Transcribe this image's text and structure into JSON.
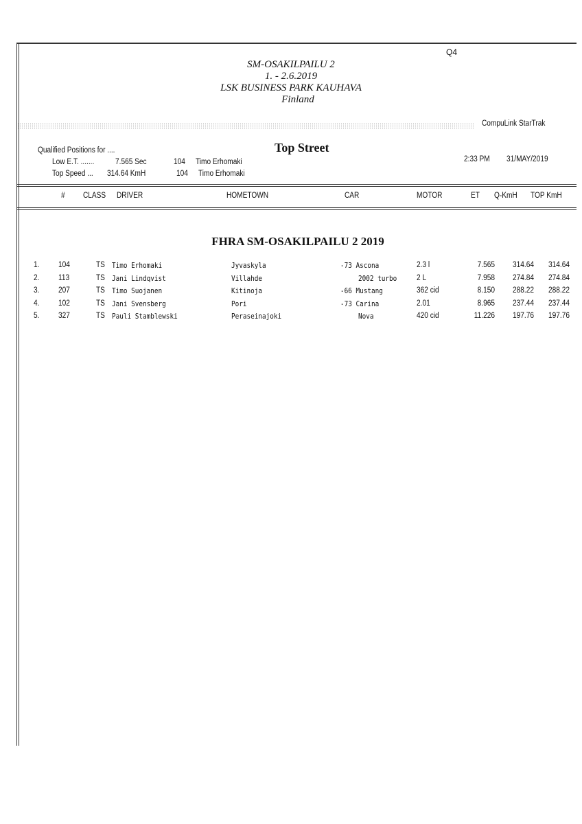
{
  "page_code": "Q4",
  "event": {
    "title": "SM-OSAKILPAILU 2",
    "dates": "1. - 2.6.2019",
    "venue": "LSK BUSINESS PARK KAUHAVA",
    "country": "Finland"
  },
  "system": "CompuLink  StarTrak",
  "qualified": {
    "heading": "Qualified Positions for ....",
    "low_et_label": "Low E.T. .......",
    "low_et_value": "7.565  Sec",
    "low_et_num": "104",
    "low_et_driver": "Timo Erhomaki",
    "top_speed_label": "Top Speed ...",
    "top_speed_value": "314.64  KmH",
    "top_speed_num": "104",
    "top_speed_driver": "Timo Erhomaki"
  },
  "class_title": "Top Street",
  "time": "2:33 PM",
  "date": "31/MAY/2019",
  "columns": [
    "#",
    "CLASS",
    "DRIVER",
    "HOMETOWN",
    "CAR",
    "MOTOR",
    "ET",
    "Q-KmH",
    "TOP KmH"
  ],
  "section_title": "FHRA SM-OSAKILPAILU 2 2019",
  "rows": [
    {
      "pos": "1.",
      "num": "104",
      "class": "TS",
      "driver": "Timo Erhomaki",
      "hometown": "Jyvaskyla",
      "car": "-73 Ascona",
      "motor": "2.3 l",
      "et": "7.565",
      "qkmh": "314.64",
      "topkmh": "314.64"
    },
    {
      "pos": "2.",
      "num": "113",
      "class": "TS",
      "driver": "Jani Lindqvist",
      "hometown": "Villahde",
      "car": "2002 turbo",
      "motor": "2 L",
      "et": "7.958",
      "qkmh": "274.84",
      "topkmh": "274.84"
    },
    {
      "pos": "3.",
      "num": "207",
      "class": "TS",
      "driver": "Timo Suojanen",
      "hometown": "Kitinoja",
      "car": "-66 Mustang",
      "motor": "362 cid",
      "et": "8.150",
      "qkmh": "288.22",
      "topkmh": "288.22"
    },
    {
      "pos": "4.",
      "num": "102",
      "class": "TS",
      "driver": "Jani Svensberg",
      "hometown": "Pori",
      "car": "-73 Carina",
      "motor": "2.01",
      "et": "8.965",
      "qkmh": "237.44",
      "topkmh": "237.44"
    },
    {
      "pos": "5.",
      "num": "327",
      "class": "TS",
      "driver": "Pauli Stamblewski",
      "hometown": "Peraseinajoki",
      "car": "Nova",
      "motor": "420 cid",
      "et": "11.226",
      "qkmh": "197.76",
      "topkmh": "197.76"
    }
  ]
}
